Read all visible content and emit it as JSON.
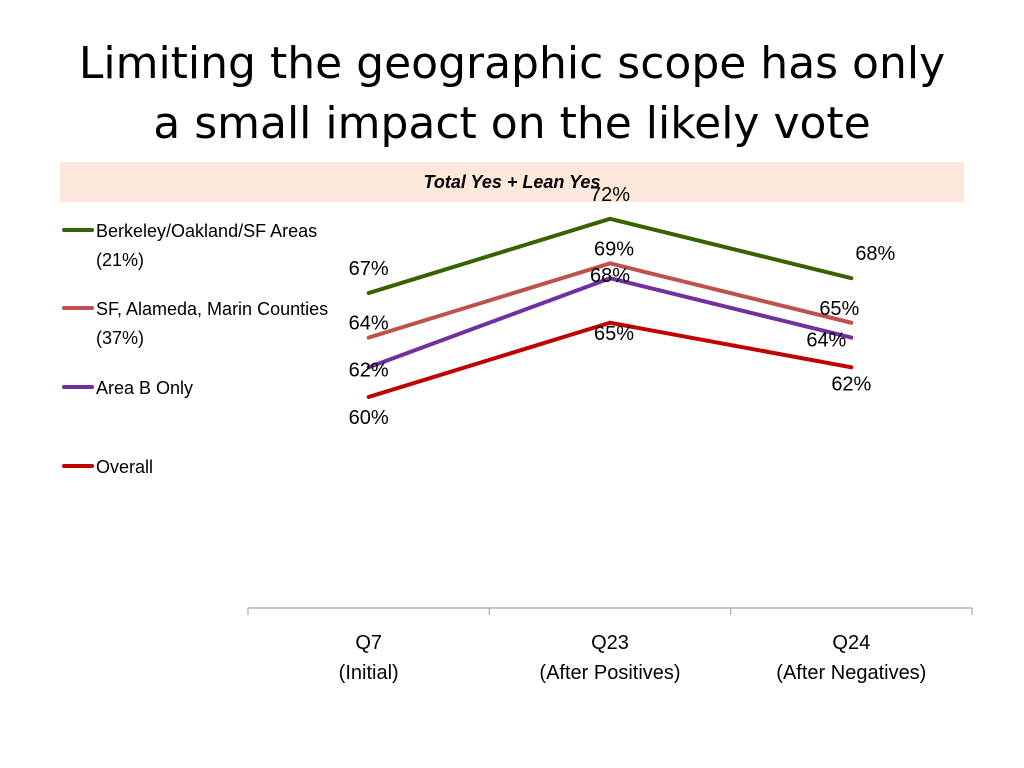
{
  "slide": {
    "title_line1": "Limiting the geographic scope has only",
    "title_line2": "a small impact on the likely vote",
    "banner": "Total  Yes + Lean Yes"
  },
  "chart_data": {
    "type": "line",
    "categories": [
      [
        "Q7",
        "(Initial)"
      ],
      [
        "Q23",
        "(After Positives)"
      ],
      [
        "Q24",
        "(After Negatives)"
      ]
    ],
    "series": [
      {
        "name": "Berkeley/Oakland/SF Areas (21%)",
        "values": [
          67,
          72,
          68
        ],
        "labels": [
          "67%",
          "72%",
          "68%"
        ],
        "color": "#376200"
      },
      {
        "name": "SF, Alameda, Marin Counties (37%)",
        "values": [
          64,
          69,
          65
        ],
        "labels": [
          "64%",
          "69%",
          "65%"
        ],
        "color": "#c0504d"
      },
      {
        "name": "Area B Only",
        "values": [
          62,
          68,
          64
        ],
        "labels": [
          "62%",
          "68%",
          "64%"
        ],
        "color": "#7030a0"
      },
      {
        "name": "Overall",
        "values": [
          60,
          65,
          62
        ],
        "labels": [
          "60%",
          "65%",
          "62%"
        ],
        "color": "#c00000"
      }
    ],
    "legend_position": "left",
    "grid": false
  }
}
